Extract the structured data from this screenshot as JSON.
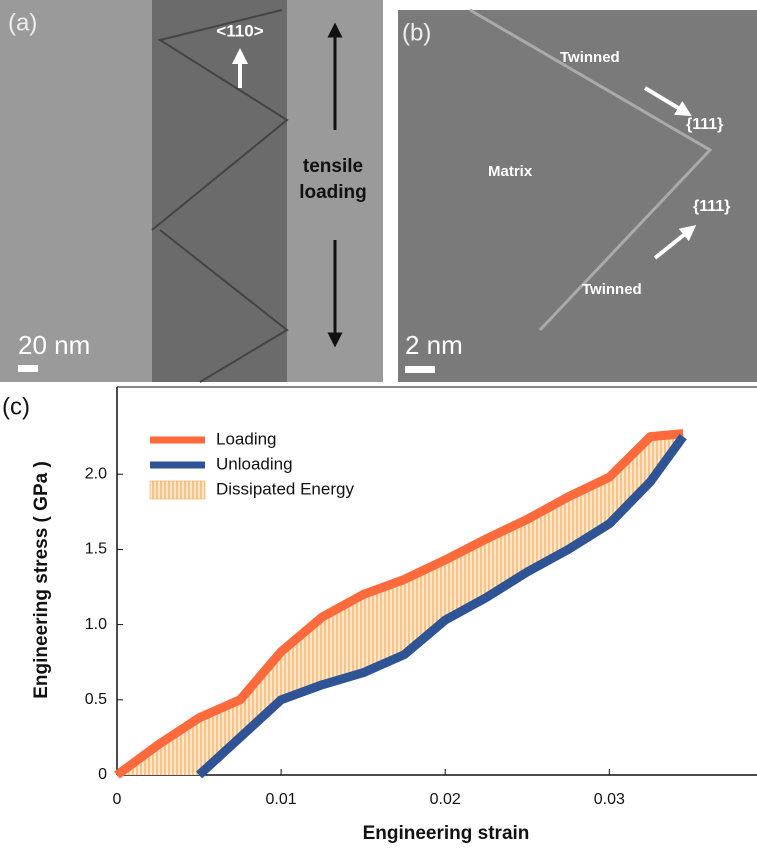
{
  "panels": [
    {
      "label": "(a)",
      "scale_bar": "20 nm",
      "annotations": [
        "<110>",
        "tensile",
        "loading"
      ]
    },
    {
      "label": "(b)",
      "scale_bar": "2 nm",
      "annotations": [
        "Twinned",
        "{111}",
        "Matrix",
        "{111}",
        "Twinned"
      ]
    }
  ],
  "chart_data": {
    "type": "line",
    "panel_label": "(c)",
    "x_label": "Engineering strain",
    "y_label": "Engineering stress ( GPa )",
    "xlim": [
      0,
      0.039
    ],
    "ylim": [
      0,
      2.58
    ],
    "xticks": [
      0,
      0.01,
      0.02,
      0.03
    ],
    "yticks": [
      0,
      0.5,
      {
        "value": 1,
        "label": "1.0"
      },
      1.5,
      {
        "value": 2,
        "label": "2.0"
      }
    ],
    "series": [
      {
        "name": "Loading",
        "color": "#ff6a3d",
        "x": [
          0,
          0.0025,
          0.005,
          0.0075,
          0.01,
          0.0125,
          0.015,
          0.0175,
          0.02,
          0.0225,
          0.025,
          0.0275,
          0.03,
          0.0325,
          0.0345
        ],
        "values": [
          0,
          0.2,
          0.38,
          0.5,
          0.82,
          1.05,
          1.2,
          1.3,
          1.43,
          1.57,
          1.7,
          1.85,
          1.98,
          2.25,
          2.27
        ]
      },
      {
        "name": "Unloading",
        "color": "#2e5496",
        "x": [
          0.005,
          0.0075,
          0.01,
          0.0125,
          0.015,
          0.0175,
          0.02,
          0.0225,
          0.025,
          0.0275,
          0.03,
          0.0325,
          0.0345
        ],
        "values": [
          0,
          0.25,
          0.5,
          0.6,
          0.68,
          0.8,
          1.03,
          1.18,
          1.35,
          1.5,
          1.67,
          1.95,
          2.25
        ]
      }
    ],
    "fill": {
      "name": "Dissipated Energy",
      "color": "#f5a033"
    }
  }
}
